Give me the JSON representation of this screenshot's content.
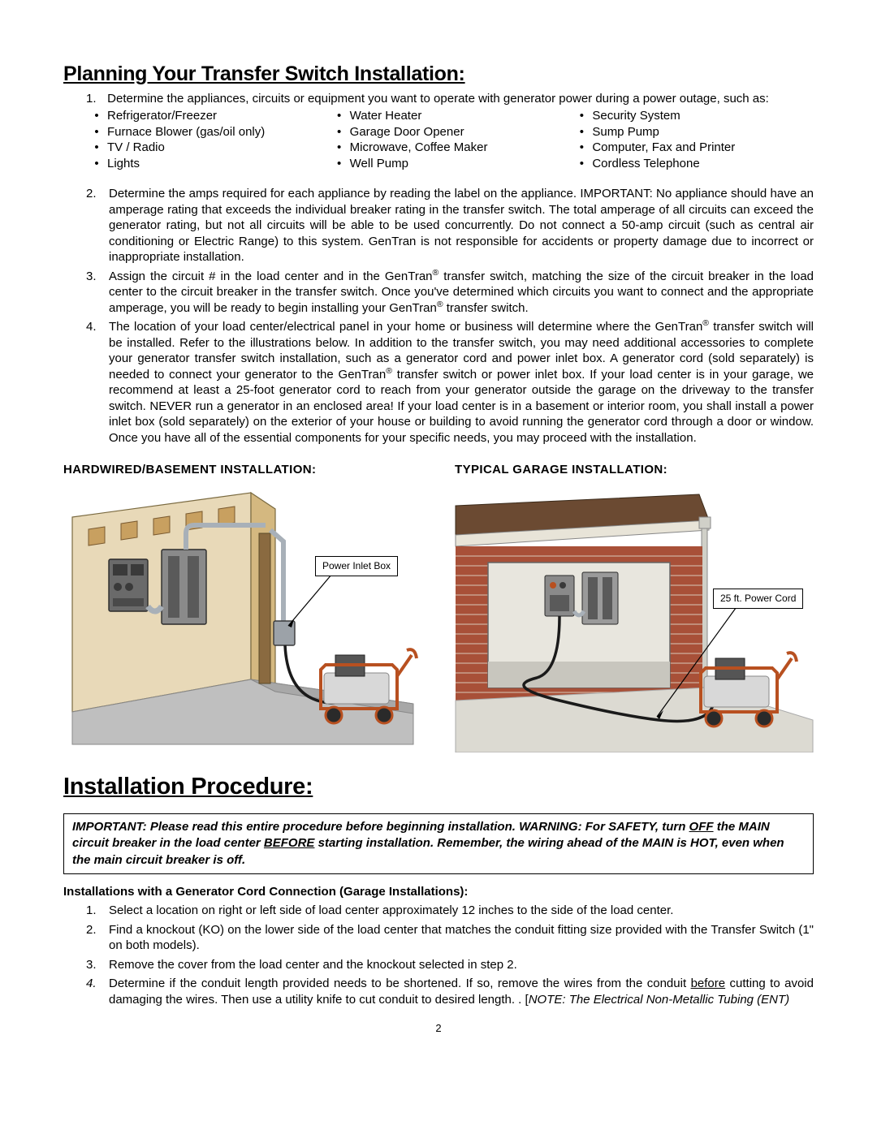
{
  "heading1": "Planning Your Transfer Switch Installation:",
  "intro": {
    "num": "1.",
    "text": "Determine the appliances, circuits or equipment you want to operate with generator power during a power outage, such as:"
  },
  "appliances": {
    "col1": [
      "Refrigerator/Freezer",
      "Furnace Blower (gas/oil only)",
      "TV / Radio",
      "Lights"
    ],
    "col2": [
      "Water Heater",
      "Garage Door Opener",
      "Microwave, Coffee Maker",
      "Well Pump"
    ],
    "col3": [
      "Security System",
      "Sump Pump",
      "Computer, Fax and Printer",
      "Cordless Telephone"
    ]
  },
  "steps": [
    {
      "num": "2.",
      "text": "Determine the amps required for each appliance by reading the label on the appliance.  IMPORTANT:  No appliance should have an amperage rating that exceeds the individual breaker rating in the transfer switch. The total amperage of all circuits can exceed the generator rating, but not all circuits will be able to be used concurrently.  Do not connect a 50-amp circuit (such as central air conditioning or Electric Range) to this system.  GenTran is not responsible for accidents or property damage due to incorrect or inappropriate installation."
    },
    {
      "num": "3.",
      "text": "Assign the circuit # in the load center and in the GenTran® transfer switch, matching the size of the circuit breaker in the load center to the circuit breaker in the transfer switch.  Once you've determined which circuits you want to connect and the appropriate amperage, you will be ready to begin installing your GenTran® transfer switch."
    },
    {
      "num": "4.",
      "text": "The location of your load center/electrical panel in your home or business will determine where the GenTran® transfer switch will be installed.  Refer to the illustrations below.  In addition to the transfer switch, you may need additional accessories to complete your generator transfer switch installation, such as a generator cord and power inlet box.  A generator cord (sold separately) is needed to connect your generator to the GenTran® transfer switch or power inlet box.  If your load center is in your garage, we recommend at least a 25-foot generator cord to reach from your generator outside the garage on the driveway to the transfer switch.  NEVER run a generator in an enclosed area!  If your load center is in a basement or interior room, you shall install a power inlet box (sold separately) on the exterior of your house or building to avoid running the generator cord through a door or window.  Once you have all of the essential components for your specific needs, you may proceed with the installation."
    }
  ],
  "diagrams": {
    "left_title": "HARDWIRED/BASEMENT INSTALLATION:",
    "right_title": "TYPICAL GARAGE INSTALLATION:",
    "left_callout": "Power Inlet Box",
    "right_callout": "25 ft. Power Cord",
    "colors": {
      "wall_interior": "#e8d9b8",
      "wall_cut": "#d4b880",
      "joist": "#c8a060",
      "floor": "#bfbfbf",
      "panel_body": "#6a6a6a",
      "panel_door": "#8a8a8a",
      "conduit": "#a8b0b8",
      "box_gray": "#9ca2a8",
      "gen_body": "#d8d8d8",
      "gen_frame": "#b85020",
      "gen_engine": "#555555",
      "roof": "#6b4a32",
      "fascia": "#e8e4d8",
      "brick": "#a85038",
      "brick_mortar": "#d8c8b8",
      "garage_interior": "#e8e6de",
      "garage_floor": "#c8c6be",
      "cord": "#1a1a1a"
    }
  },
  "heading2": "Installation Procedure:",
  "warning": {
    "p1a": "IMPORTANT:  Please read this entire procedure before beginning installation.  WARNING:  For SAFETY, turn ",
    "p1b": "OFF",
    "p2a": " the MAIN circuit breaker in the load center ",
    "p2b": "BEFORE",
    "p2c": " starting installation.  Remember, the wiring ahead of the MAIN is HOT, even when the main circuit breaker is off."
  },
  "subheading": "Installations with a Generator Cord Connection (Garage Installations):",
  "proc_steps": [
    {
      "num": "1.",
      "text": "Select a location on right or left side of load center approximately 12 inches to the side of the load center."
    },
    {
      "num": "2.",
      "text": "Find a knockout (KO) on the lower side of the load center that matches the conduit fitting size provided with the Transfer Switch (1\" on both models)."
    },
    {
      "num": "3.",
      "text": "Remove the cover from the load center and the knockout selected in step 2."
    },
    {
      "num": "4.",
      "italic": true,
      "pre": "Determine if the conduit length provided needs to be shortened.  If so, remove the wires from the conduit ",
      "u": "before",
      "post": " cutting to avoid damaging the wires.  Then use a utility knife to cut conduit to desired length. .  [",
      "note": "NOTE:  The Electrical Non-Metallic Tubing (ENT)"
    }
  ],
  "page_number": "2"
}
